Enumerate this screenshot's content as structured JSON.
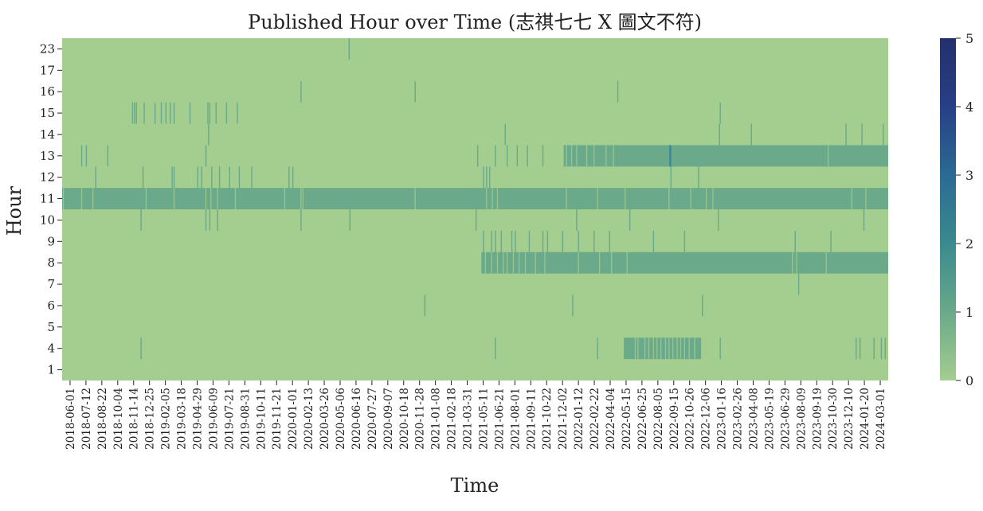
{
  "chart_data": {
    "type": "heatmap",
    "title": "Published Hour over Time (志祺七七 X 圖文不符)",
    "xlabel": "Time",
    "ylabel": "Hour",
    "y_categories": [
      "23",
      "17",
      "16",
      "15",
      "14",
      "13",
      "12",
      "11",
      "10",
      "9",
      "8",
      "7",
      "6",
      "5",
      "4",
      "1"
    ],
    "x_tick_labels": [
      "2018-06-01",
      "2018-07-12",
      "2018-08-22",
      "2018-10-04",
      "2018-11-14",
      "2018-12-25",
      "2019-02-05",
      "2019-03-18",
      "2019-04-29",
      "2019-06-09",
      "2019-07-21",
      "2019-08-31",
      "2019-10-11",
      "2019-11-21",
      "2020-01-01",
      "2020-02-13",
      "2020-03-26",
      "2020-05-06",
      "2020-06-16",
      "2020-07-27",
      "2020-09-07",
      "2020-10-18",
      "2020-11-28",
      "2021-01-08",
      "2021-02-18",
      "2021-03-31",
      "2021-05-11",
      "2021-06-21",
      "2021-08-01",
      "2021-09-11",
      "2021-10-22",
      "2021-12-02",
      "2022-01-12",
      "2022-02-22",
      "2022-04-04",
      "2022-05-15",
      "2022-06-25",
      "2022-08-05",
      "2022-09-15",
      "2022-10-26",
      "2022-12-06",
      "2023-01-16",
      "2023-02-26",
      "2023-04-08",
      "2023-05-19",
      "2023-06-29",
      "2023-08-09",
      "2023-09-19",
      "2023-10-30",
      "2023-12-10",
      "2024-01-20",
      "2024-03-01"
    ],
    "x_range": [
      "2018-06-01",
      "2024-03-29"
    ],
    "colorbar": {
      "ticks": [
        0,
        1,
        2,
        3,
        4,
        5
      ],
      "range": [
        0,
        5
      ],
      "colormap": "crest",
      "stops": [
        "#a4cd90",
        "#6aa989",
        "#3a8a8f",
        "#2b6b93",
        "#283f86",
        "#24306b"
      ]
    },
    "background_value": 0,
    "bands": [
      {
        "hour": "11",
        "start": "2018-06-01",
        "end": "2024-03-29",
        "value": 1
      },
      {
        "hour": "13",
        "start": "2021-12-14",
        "end": "2024-03-29",
        "value": 1
      },
      {
        "hour": "8",
        "start": "2021-05-16",
        "end": "2024-03-29",
        "value": 1
      },
      {
        "hour": "4",
        "start": "2022-05-18",
        "end": "2022-12-03",
        "value": 1
      }
    ],
    "hotspots": [
      {
        "hour": "13",
        "date": "2022-09-12",
        "value": 2
      }
    ],
    "gaps": [
      {
        "hour": "11",
        "dates": [
          "2018-06-03",
          "2018-07-20",
          "2018-08-18",
          "2019-01-02",
          "2019-03-15",
          "2019-06-05",
          "2019-06-18",
          "2019-07-05",
          "2019-08-20",
          "2019-12-25",
          "2020-02-05",
          "2020-02-10",
          "2020-11-25",
          "2021-05-28",
          "2021-06-12",
          "2021-06-25",
          "2021-12-20",
          "2022-03-10",
          "2022-05-20",
          "2022-09-10",
          "2022-11-05",
          "2022-12-15",
          "2023-01-01",
          "2023-12-25",
          "2024-01-30"
        ]
      },
      {
        "hour": "13",
        "dates": [
          "2021-12-20",
          "2022-01-02",
          "2022-01-15",
          "2022-02-10",
          "2022-03-01",
          "2022-04-01",
          "2022-04-20",
          "2023-10-25"
        ]
      },
      {
        "hour": "8",
        "dates": [
          "2021-05-25",
          "2021-06-10",
          "2021-06-25",
          "2021-07-10",
          "2021-07-20",
          "2021-08-05",
          "2021-08-20",
          "2021-09-05",
          "2021-10-01",
          "2021-10-25",
          "2022-01-20",
          "2022-03-15",
          "2022-04-15",
          "2022-05-25",
          "2023-07-25",
          "2023-08-05",
          "2023-10-20"
        ]
      },
      {
        "hour": "4",
        "dates": [
          "2022-06-15",
          "2022-06-22",
          "2022-07-10",
          "2022-07-20",
          "2022-08-01",
          "2022-08-10",
          "2022-08-20",
          "2022-09-01",
          "2022-09-10",
          "2022-09-20",
          "2022-10-01",
          "2022-10-10",
          "2022-10-20",
          "2022-11-01",
          "2022-11-15"
        ]
      }
    ],
    "posts": [
      {
        "hour": "23",
        "date": "2020-06-08",
        "value": 1
      },
      {
        "hour": "16",
        "date": "2020-02-05",
        "value": 1
      },
      {
        "hour": "16",
        "date": "2020-11-25",
        "value": 1
      },
      {
        "hour": "16",
        "date": "2022-05-01",
        "value": 1
      },
      {
        "hour": "15",
        "date": "2018-11-28",
        "value": 1
      },
      {
        "hour": "15",
        "date": "2018-12-03",
        "value": 1
      },
      {
        "hour": "15",
        "date": "2018-12-08",
        "value": 1
      },
      {
        "hour": "15",
        "date": "2018-12-28",
        "value": 1
      },
      {
        "hour": "15",
        "date": "2019-01-25",
        "value": 1
      },
      {
        "hour": "15",
        "date": "2019-02-10",
        "value": 1
      },
      {
        "hour": "15",
        "date": "2019-02-22",
        "value": 1
      },
      {
        "hour": "15",
        "date": "2019-03-05",
        "value": 1
      },
      {
        "hour": "15",
        "date": "2019-03-15",
        "value": 1
      },
      {
        "hour": "15",
        "date": "2019-04-25",
        "value": 1
      },
      {
        "hour": "15",
        "date": "2019-06-10",
        "value": 1
      },
      {
        "hour": "15",
        "date": "2019-06-15",
        "value": 1
      },
      {
        "hour": "15",
        "date": "2019-07-01",
        "value": 1
      },
      {
        "hour": "15",
        "date": "2019-07-28",
        "value": 1
      },
      {
        "hour": "15",
        "date": "2019-08-25",
        "value": 1
      },
      {
        "hour": "15",
        "date": "2023-01-20",
        "value": 1
      },
      {
        "hour": "14",
        "date": "2019-06-12",
        "value": 1
      },
      {
        "hour": "14",
        "date": "2021-07-15",
        "value": 1
      },
      {
        "hour": "14",
        "date": "2023-01-18",
        "value": 1
      },
      {
        "hour": "14",
        "date": "2023-04-10",
        "value": 1
      },
      {
        "hour": "14",
        "date": "2023-12-10",
        "value": 1
      },
      {
        "hour": "14",
        "date": "2024-01-20",
        "value": 1
      },
      {
        "hour": "14",
        "date": "2024-03-15",
        "value": 1
      },
      {
        "hour": "13",
        "date": "2018-07-20",
        "value": 1
      },
      {
        "hour": "13",
        "date": "2018-08-01",
        "value": 1
      },
      {
        "hour": "13",
        "date": "2018-09-25",
        "value": 1
      },
      {
        "hour": "13",
        "date": "2019-06-05",
        "value": 1
      },
      {
        "hour": "13",
        "date": "2021-05-05",
        "value": 1
      },
      {
        "hour": "13",
        "date": "2021-06-20",
        "value": 1
      },
      {
        "hour": "13",
        "date": "2021-07-20",
        "value": 1
      },
      {
        "hour": "13",
        "date": "2021-08-15",
        "value": 1
      },
      {
        "hour": "13",
        "date": "2021-09-10",
        "value": 1
      },
      {
        "hour": "13",
        "date": "2021-10-20",
        "value": 1
      },
      {
        "hour": "12",
        "date": "2018-08-25",
        "value": 1
      },
      {
        "hour": "12",
        "date": "2018-12-25",
        "value": 1
      },
      {
        "hour": "12",
        "date": "2019-03-10",
        "value": 1
      },
      {
        "hour": "12",
        "date": "2019-03-15",
        "value": 1
      },
      {
        "hour": "12",
        "date": "2019-05-15",
        "value": 1
      },
      {
        "hour": "12",
        "date": "2019-05-25",
        "value": 1
      },
      {
        "hour": "12",
        "date": "2019-06-20",
        "value": 1
      },
      {
        "hour": "12",
        "date": "2019-07-10",
        "value": 1
      },
      {
        "hour": "12",
        "date": "2019-08-05",
        "value": 1
      },
      {
        "hour": "12",
        "date": "2019-08-30",
        "value": 1
      },
      {
        "hour": "12",
        "date": "2019-10-01",
        "value": 1
      },
      {
        "hour": "12",
        "date": "2020-01-05",
        "value": 1
      },
      {
        "hour": "12",
        "date": "2020-01-15",
        "value": 1
      },
      {
        "hour": "12",
        "date": "2021-05-20",
        "value": 1
      },
      {
        "hour": "12",
        "date": "2021-05-28",
        "value": 1
      },
      {
        "hour": "12",
        "date": "2021-06-05",
        "value": 1
      },
      {
        "hour": "12",
        "date": "2022-09-15",
        "value": 1
      },
      {
        "hour": "12",
        "date": "2022-11-25",
        "value": 1
      },
      {
        "hour": "10",
        "date": "2018-12-20",
        "value": 1
      },
      {
        "hour": "10",
        "date": "2019-06-05",
        "value": 1
      },
      {
        "hour": "10",
        "date": "2019-06-15",
        "value": 1
      },
      {
        "hour": "10",
        "date": "2019-07-05",
        "value": 1
      },
      {
        "hour": "10",
        "date": "2020-02-05",
        "value": 1
      },
      {
        "hour": "10",
        "date": "2020-06-10",
        "value": 1
      },
      {
        "hour": "10",
        "date": "2021-05-01",
        "value": 1
      },
      {
        "hour": "10",
        "date": "2022-01-15",
        "value": 1
      },
      {
        "hour": "10",
        "date": "2022-06-01",
        "value": 1
      },
      {
        "hour": "10",
        "date": "2023-01-15",
        "value": 1
      },
      {
        "hour": "10",
        "date": "2024-01-25",
        "value": 1
      },
      {
        "hour": "9",
        "date": "2021-05-20",
        "value": 1
      },
      {
        "hour": "9",
        "date": "2021-06-10",
        "value": 1
      },
      {
        "hour": "9",
        "date": "2021-06-20",
        "value": 1
      },
      {
        "hour": "9",
        "date": "2021-07-05",
        "value": 1
      },
      {
        "hour": "9",
        "date": "2021-08-01",
        "value": 1
      },
      {
        "hour": "9",
        "date": "2021-08-10",
        "value": 1
      },
      {
        "hour": "9",
        "date": "2021-09-15",
        "value": 1
      },
      {
        "hour": "9",
        "date": "2021-10-20",
        "value": 1
      },
      {
        "hour": "9",
        "date": "2021-11-01",
        "value": 1
      },
      {
        "hour": "9",
        "date": "2021-12-10",
        "value": 1
      },
      {
        "hour": "9",
        "date": "2022-01-20",
        "value": 1
      },
      {
        "hour": "9",
        "date": "2022-03-01",
        "value": 1
      },
      {
        "hour": "9",
        "date": "2022-04-10",
        "value": 1
      },
      {
        "hour": "9",
        "date": "2022-08-01",
        "value": 1
      },
      {
        "hour": "9",
        "date": "2022-10-20",
        "value": 1
      },
      {
        "hour": "9",
        "date": "2023-08-01",
        "value": 1
      },
      {
        "hour": "9",
        "date": "2023-11-01",
        "value": 1
      },
      {
        "hour": "7",
        "date": "2023-08-10",
        "value": 1
      },
      {
        "hour": "6",
        "date": "2020-12-20",
        "value": 1
      },
      {
        "hour": "6",
        "date": "2022-01-05",
        "value": 1
      },
      {
        "hour": "6",
        "date": "2022-12-05",
        "value": 1
      },
      {
        "hour": "4",
        "date": "2018-12-20",
        "value": 1
      },
      {
        "hour": "4",
        "date": "2021-06-20",
        "value": 1
      },
      {
        "hour": "4",
        "date": "2022-03-10",
        "value": 1
      },
      {
        "hour": "4",
        "date": "2023-01-20",
        "value": 1
      },
      {
        "hour": "4",
        "date": "2024-01-05",
        "value": 1
      },
      {
        "hour": "4",
        "date": "2024-01-15",
        "value": 1
      },
      {
        "hour": "4",
        "date": "2024-02-20",
        "value": 1
      },
      {
        "hour": "4",
        "date": "2024-03-10",
        "value": 1
      },
      {
        "hour": "4",
        "date": "2024-03-20",
        "value": 1
      }
    ]
  }
}
